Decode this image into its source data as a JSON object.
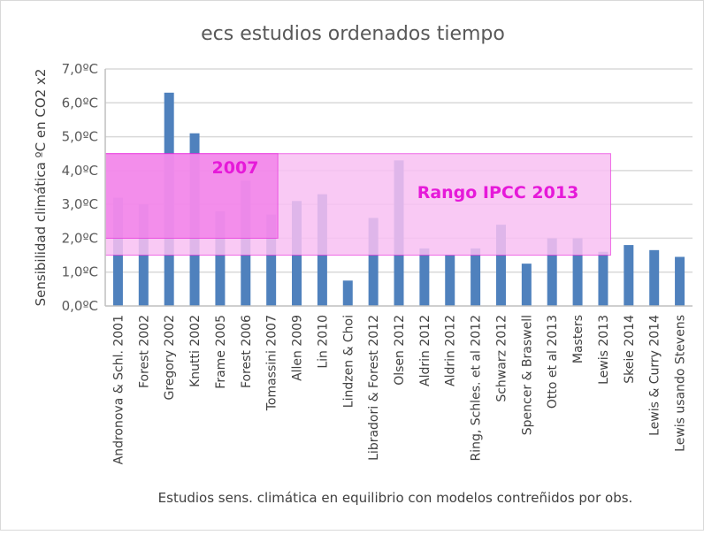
{
  "chart_data": {
    "type": "bar",
    "title": "ecs estudios ordenados tiempo",
    "xlabel": "Estudios sens. climática en equilibrio con modelos contreñidos por obs.",
    "ylabel": "Sensibilidad climática ºC en CO2 x2",
    "ylim": [
      0,
      7
    ],
    "yticks": [
      "0,0ºC",
      "1,0ºC",
      "2,0ºC",
      "3,0ºC",
      "4,0ºC",
      "5,0ºC",
      "6,0ºC",
      "7,0ºC"
    ],
    "grid": true,
    "categories": [
      "Andronova & Schl. 2001",
      "Forest 2002",
      "Gregory 2002",
      "Knutti 2002",
      "Frame 2005",
      "Forest 2006",
      "Tomassini 2007",
      "Allen 2009",
      "Lin 2010",
      "Lindzen & Choi",
      "Libradori & Forest 2012",
      "Olsen 2012",
      "Aldrin 2012",
      "Aldrin 2012",
      "Ring, Schles. et al 2012",
      "Schwarz 2012",
      "Spencer & Braswell",
      "Otto et al 2013",
      "Masters",
      "Lewis 2013",
      "Skeie 2014",
      "Lewis & Curry 2014",
      "Lewis usando Stevens"
    ],
    "values": [
      3.2,
      3.0,
      6.3,
      5.1,
      2.8,
      3.7,
      2.7,
      3.1,
      3.3,
      0.75,
      2.6,
      4.3,
      1.7,
      1.5,
      1.7,
      2.4,
      1.25,
      2.0,
      2.0,
      1.6,
      1.8,
      1.65,
      1.45
    ],
    "bar_color": "#4f81bd",
    "annotations": [
      {
        "label": "2007",
        "range": [
          2.0,
          4.5
        ],
        "from_category": 0,
        "to_category": 6,
        "color": "#e619d9",
        "fill": "#f07ae8"
      },
      {
        "label": "Rango IPCC 2013",
        "range": [
          1.5,
          4.5
        ],
        "from_category": 0,
        "to_category": 19,
        "color": "#e619d9",
        "fill": "#f8c0f2"
      }
    ]
  }
}
